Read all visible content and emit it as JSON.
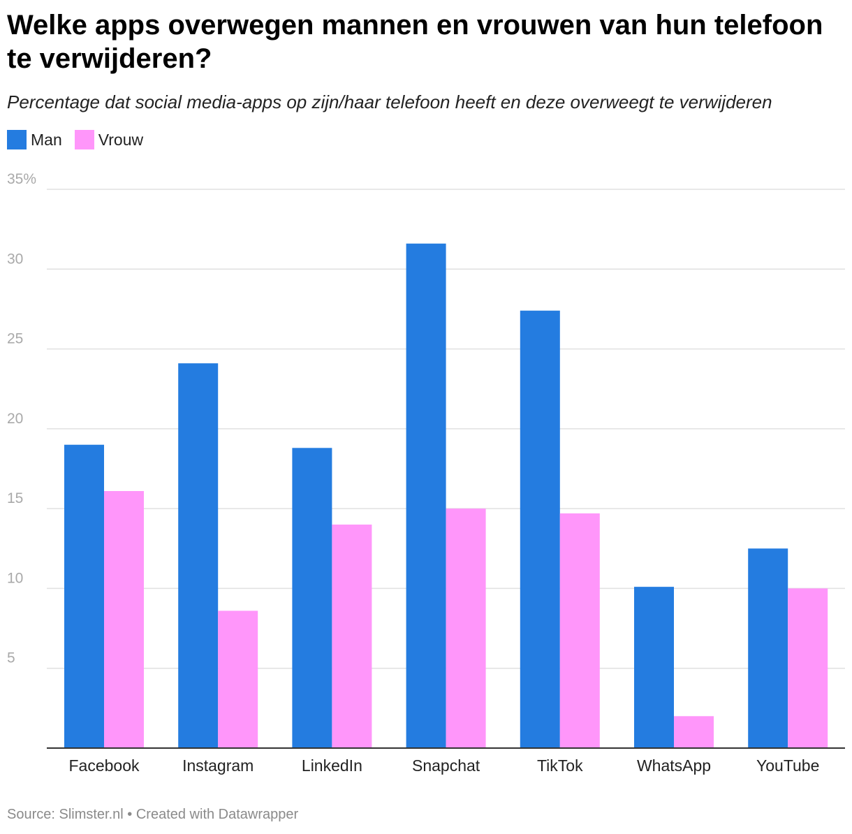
{
  "chart_data": {
    "type": "bar",
    "title": "Welke apps overwegen mannen en vrouwen van hun telefoon te verwijderen?",
    "subtitle": "Percentage dat social media-apps op zijn/haar telefoon heeft en deze overweegt te verwijderen",
    "categories": [
      "Facebook",
      "Instagram",
      "LinkedIn",
      "Snapchat",
      "TikTok",
      "WhatsApp",
      "YouTube"
    ],
    "series": [
      {
        "name": "Man",
        "color": "#247ce0",
        "values": [
          19.0,
          24.1,
          18.8,
          31.6,
          27.4,
          10.1,
          12.5
        ]
      },
      {
        "name": "Vrouw",
        "color": "#ff96fa",
        "values": [
          16.1,
          8.6,
          14.0,
          15.0,
          14.7,
          2.0,
          10.0
        ]
      }
    ],
    "ylim": [
      0,
      35
    ],
    "yticks": [
      {
        "value": 35,
        "label": "35%"
      },
      {
        "value": 30,
        "label": "30"
      },
      {
        "value": 25,
        "label": "25"
      },
      {
        "value": 20,
        "label": "20"
      },
      {
        "value": 15,
        "label": "15"
      },
      {
        "value": 10,
        "label": "10"
      },
      {
        "value": 5,
        "label": "5"
      }
    ],
    "xlabel": "",
    "ylabel": "",
    "grid": true,
    "legend_position": "top-left"
  },
  "footer": {
    "source": "Source: Slimster.nl • Created with Datawrapper"
  }
}
